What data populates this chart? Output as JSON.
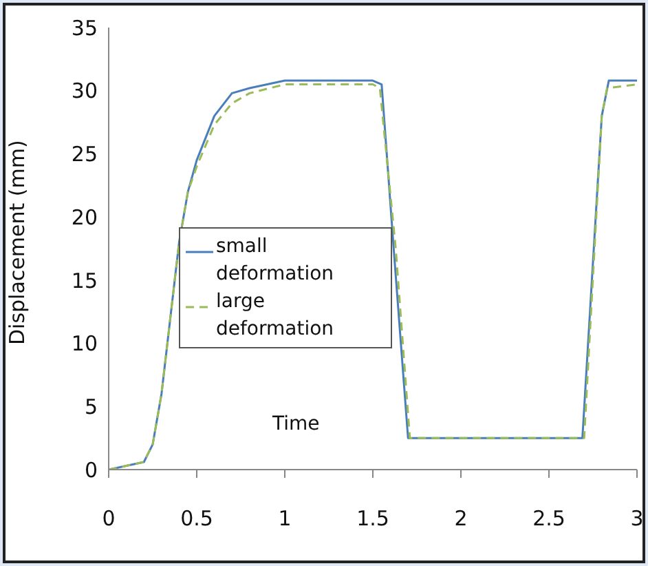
{
  "chart_data": {
    "type": "line",
    "xlabel": "Time",
    "ylabel": "Displacement (mm)",
    "xlim": [
      0,
      3
    ],
    "xticks": [
      0,
      0.5,
      1,
      1.5,
      2,
      2.5,
      3
    ],
    "ylim": [
      0,
      35
    ],
    "yticks": [
      0,
      5,
      10,
      15,
      20,
      25,
      30,
      35
    ],
    "grid": false,
    "legend": "left",
    "marker": "none",
    "series": [
      {
        "name": "small deformation",
        "color": "#4a7ebb",
        "line_style": "solid",
        "x": [
          0,
          0.2,
          0.25,
          0.3,
          0.35,
          0.4,
          0.45,
          0.5,
          0.6,
          0.7,
          0.8,
          1.0,
          1.5,
          1.55,
          1.62,
          1.7,
          2.69,
          2.8,
          2.84,
          3
        ],
        "values": [
          0,
          0.6,
          2,
          6,
          12,
          18,
          22,
          24.5,
          28,
          29.8,
          30.2,
          30.8,
          30.8,
          30.5,
          17.2,
          2.5,
          2.5,
          28,
          30.8,
          30.8
        ]
      },
      {
        "name": "large deformation",
        "color": "#9bbb59",
        "line_style": "dashed",
        "x": [
          0,
          0.2,
          0.25,
          0.3,
          0.35,
          0.4,
          0.45,
          0.5,
          0.6,
          0.7,
          0.8,
          1.0,
          1.5,
          1.54,
          1.63,
          1.71,
          2.7,
          2.8,
          2.83,
          3
        ],
        "values": [
          0,
          0.6,
          2,
          6,
          12,
          18,
          22,
          24,
          27.3,
          29,
          29.8,
          30.5,
          30.5,
          30.2,
          17.5,
          2.5,
          2.5,
          28,
          30.2,
          30.5
        ]
      }
    ]
  }
}
